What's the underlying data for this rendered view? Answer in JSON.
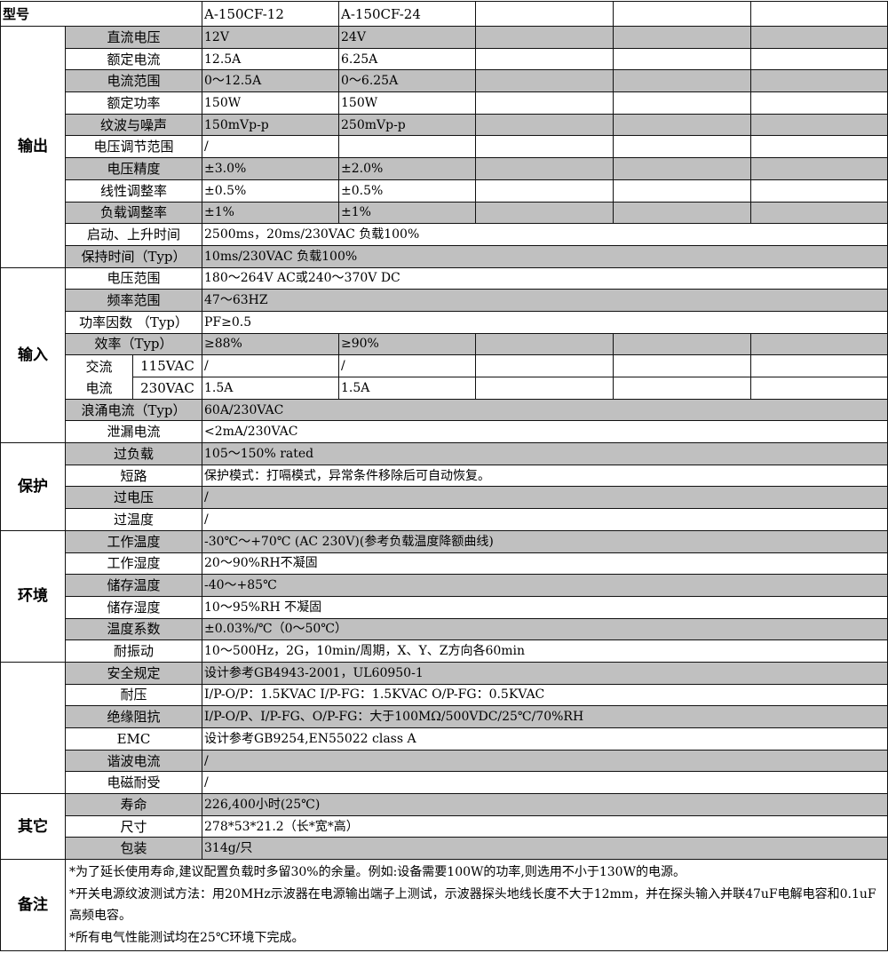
{
  "header": {
    "label": "型号",
    "models": [
      "A-150CF-12",
      "A-150CF-24"
    ]
  },
  "colors": {
    "shade": "#c0c0c0",
    "border": "#111111"
  },
  "sections": [
    {
      "name": "输出",
      "rows": [
        {
          "label": "直流电压",
          "values": [
            "12V",
            "24V"
          ],
          "shaded": true
        },
        {
          "label": "额定电流",
          "values": [
            "12.5A",
            "6.25A"
          ],
          "shaded": false
        },
        {
          "label": "电流范围",
          "values": [
            "0～12.5A",
            "0～6.25A"
          ],
          "shaded": true
        },
        {
          "label": "额定功率",
          "values": [
            "150W",
            "150W"
          ],
          "shaded": false
        },
        {
          "label": "纹波与噪声",
          "values": [
            "150mVp-p",
            "250mVp-p"
          ],
          "shaded": true
        },
        {
          "label": "电压调节范围",
          "values": [
            "/",
            ""
          ],
          "shaded": false
        },
        {
          "label": "电压精度",
          "values": [
            "±3.0%",
            "±2.0%"
          ],
          "shaded": true
        },
        {
          "label": "线性调整率",
          "values": [
            "±0.5%",
            "±0.5%"
          ],
          "shaded": false
        },
        {
          "label": "负载调整率",
          "values": [
            "±1%",
            "±1%"
          ],
          "shaded": true
        },
        {
          "label": "启动、上升时间",
          "values": [
            "2500ms，20ms/230VAC 负载100%"
          ],
          "shaded": false
        },
        {
          "label": "保持时间（Typ）",
          "values": [
            "10ms/230VAC 负载100%"
          ],
          "shaded": true
        }
      ]
    },
    {
      "name": "输入",
      "rows": [
        {
          "label": "电压范围",
          "values": [
            "180～264V AC或240～370V DC"
          ],
          "shaded": false
        },
        {
          "label": "频率范围",
          "values": [
            "47～63HZ"
          ],
          "shaded": true
        },
        {
          "label": "功率因数 （Typ）",
          "values": [
            "PF≥0.5"
          ],
          "shaded": false
        },
        {
          "label": "效率（Typ）",
          "values": [
            "≥88%",
            "≥90%"
          ],
          "shaded": true
        },
        {
          "label": "交流电流",
          "group_lines": [
            "交流",
            "电流"
          ],
          "sub": [
            {
              "label": "115VAC",
              "values": [
                "/",
                "/"
              ]
            },
            {
              "label": "230VAC",
              "values": [
                "1.5A",
                "1.5A"
              ]
            }
          ],
          "shaded": false
        },
        {
          "label": "浪涌电流（Typ）",
          "values": [
            "60A/230VAC"
          ],
          "shaded": true
        },
        {
          "label": "泄漏电流",
          "values": [
            "<2mA/230VAC"
          ],
          "shaded": false
        }
      ]
    },
    {
      "name": "保护",
      "rows": [
        {
          "label": "过负载",
          "values": [
            "105～150% rated"
          ],
          "shaded": true
        },
        {
          "label": "短路",
          "values": [
            "保护模式：打嗝模式，异常条件移除后可自动恢复。"
          ],
          "shaded": false
        },
        {
          "label": "过电压",
          "values": [
            "/"
          ],
          "shaded": true
        },
        {
          "label": "过温度",
          "values": [
            "/"
          ],
          "shaded": false
        }
      ]
    },
    {
      "name": "环境",
      "rows": [
        {
          "label": "工作温度",
          "values": [
            "-30℃～+70℃ (AC 230V)(参考负载温度降额曲线)"
          ],
          "shaded": true
        },
        {
          "label": "工作湿度",
          "values": [
            "20～90%RH不凝固"
          ],
          "shaded": false
        },
        {
          "label": "储存温度",
          "values": [
            "-40～+85℃"
          ],
          "shaded": true
        },
        {
          "label": "储存湿度",
          "values": [
            "10～95%RH 不凝固"
          ],
          "shaded": false
        },
        {
          "label": "温度系数",
          "values": [
            "±0.03%/℃（0～50℃）"
          ],
          "shaded": true
        },
        {
          "label": "耐振动",
          "values": [
            "10～500Hz，2G，10min/周期，X、Y、Z方向各60min"
          ],
          "shaded": false
        }
      ]
    },
    {
      "name": "",
      "rows": [
        {
          "label": "安全规定",
          "values": [
            "设计参考GB4943-2001，UL60950-1"
          ],
          "shaded": true
        },
        {
          "label": "耐压",
          "values": [
            "I/P-O/P：1.5KVAC I/P-FG：1.5KVAC    O/P-FG：0.5KVAC"
          ],
          "shaded": false
        },
        {
          "label": "绝缘阻抗",
          "values": [
            "I/P-O/P、I/P-FG、O/P-FG：大于100MΩ/500VDC/25℃/70%RH"
          ],
          "shaded": true
        },
        {
          "label": "EMC",
          "values": [
            "设计参考GB9254,EN55022 class A"
          ],
          "shaded": false
        },
        {
          "label": "谐波电流",
          "values": [
            "/"
          ],
          "shaded": true
        },
        {
          "label": "电磁耐受",
          "values": [
            "/"
          ],
          "shaded": false
        }
      ]
    },
    {
      "name": "其它",
      "rows": [
        {
          "label": "寿命",
          "values": [
            "226,400小时(25℃)"
          ],
          "shaded": true
        },
        {
          "label": "尺寸",
          "values": [
            "278*53*21.2（长*宽*高）"
          ],
          "shaded": false
        },
        {
          "label": "包装",
          "values": [
            "314g/只"
          ],
          "shaded": true
        }
      ]
    }
  ],
  "notes": {
    "label": "备注",
    "lines": [
      "*为了延长使用寿命,建议配置负载时多留30%的余量。例如:设备需要100W的功率,则选用不小于130W的电源。",
      "*开关电源纹波测试方法：用20MHz示波器在电源输出端子上测试，示波器探头地线长度不大于12mm，并在探头输入并联47uF电解电容和0.1uF高频电容。",
      "*所有电气性能测试均在25℃环境下完成。"
    ]
  }
}
